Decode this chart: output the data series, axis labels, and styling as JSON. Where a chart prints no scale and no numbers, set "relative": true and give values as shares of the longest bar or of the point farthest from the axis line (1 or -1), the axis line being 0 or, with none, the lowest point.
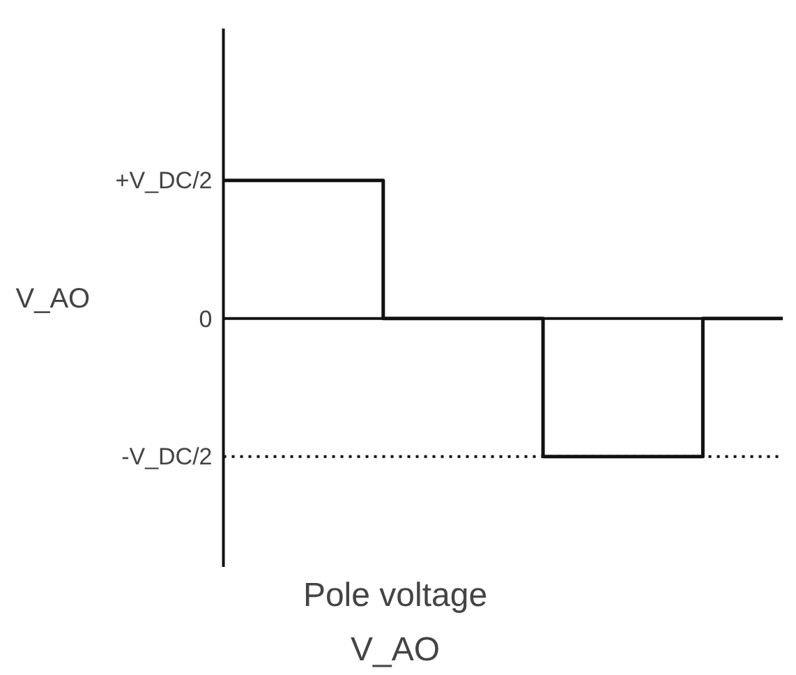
{
  "chart_data": {
    "type": "step",
    "title": "Pole voltage",
    "subtitle": "V_AO",
    "ylabel": "V_AO",
    "relative": true,
    "categories": [
      null,
      null,
      null,
      null,
      null
    ],
    "series": [
      {
        "color": "#111111",
        "values": [
          1,
          0,
          -1,
          0,
          0
        ]
      }
    ],
    "annotations": [
      "+V_DC/2",
      "0",
      "-V_DC/2"
    ],
    "ref_lines": [
      {
        "axis": "y",
        "value": -1,
        "label": null,
        "line_style": "dotted",
        "color": "#111111"
      }
    ],
    "marker": "none",
    "line_style": "solid"
  }
}
